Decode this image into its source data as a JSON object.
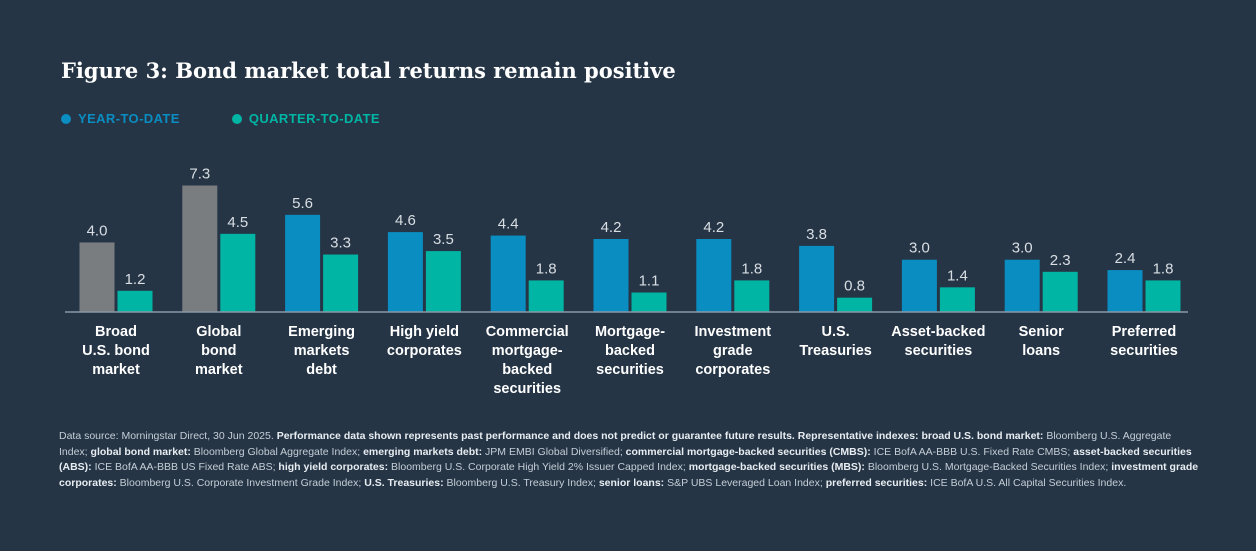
{
  "title": "Figure 3: Bond market total returns remain positive",
  "legend": {
    "ytd": "YEAR-TO-DATE",
    "qtd": "QUARTER-TO-DATE"
  },
  "colors": {
    "ytd": "#0a8dc1",
    "qtd": "#00b5a4",
    "ytd_broad": "#7a7d80",
    "background": "#253546",
    "axis": "#8a98a5"
  },
  "chart_data": {
    "type": "bar",
    "categories": [
      [
        "Broad",
        "U.S. bond",
        "market"
      ],
      [
        "Global",
        "bond",
        "market"
      ],
      [
        "Emerging",
        "markets",
        "debt"
      ],
      [
        "High yield",
        "corporates"
      ],
      [
        "Commercial",
        "mortgage-",
        "backed",
        "securities"
      ],
      [
        "Mortgage-",
        "backed",
        "securities"
      ],
      [
        "Investment",
        "grade",
        "corporates"
      ],
      [
        "U.S.",
        "Treasuries"
      ],
      [
        "Asset-backed",
        "securities"
      ],
      [
        "Senior",
        "loans"
      ],
      [
        "Preferred",
        "securities"
      ]
    ],
    "series": [
      {
        "name": "YEAR-TO-DATE",
        "values": [
          4.0,
          7.3,
          5.6,
          4.6,
          4.4,
          4.2,
          4.2,
          3.8,
          3.0,
          3.0,
          2.4
        ]
      },
      {
        "name": "QUARTER-TO-DATE",
        "values": [
          1.2,
          4.5,
          3.3,
          3.5,
          1.8,
          1.1,
          1.8,
          0.8,
          1.4,
          2.3,
          1.8
        ]
      }
    ],
    "highlight_gray_categories": [
      0,
      1
    ],
    "ylim": [
      0,
      7.3
    ]
  },
  "footnote": [
    {
      "t": "Data source: Morningstar Direct, 30 Jun 2025. ",
      "b": false
    },
    {
      "t": "Performance data shown represents past performance and does not predict or guarantee future results. Representative indexes: broad U.S. bond market:",
      "b": true
    },
    {
      "t": " Bloomberg U.S. Aggregate Index; ",
      "b": false
    },
    {
      "t": "global bond market:",
      "b": true
    },
    {
      "t": " Bloomberg Global Aggregate Index; ",
      "b": false
    },
    {
      "t": "emerging markets debt:",
      "b": true
    },
    {
      "t": " JPM EMBI Global Diversified; ",
      "b": false
    },
    {
      "t": "commercial mortgage-backed securities (CMBS):",
      "b": true
    },
    {
      "t": " ICE BofA AA-BBB U.S. Fixed Rate CMBS; ",
      "b": false
    },
    {
      "t": "asset-backed securities (ABS):",
      "b": true
    },
    {
      "t": " ICE BofA AA-BBB US Fixed Rate ABS; ",
      "b": false
    },
    {
      "t": "high yield corporates:",
      "b": true
    },
    {
      "t": " Bloomberg U.S. Corporate High Yield 2% Issuer Capped Index; ",
      "b": false
    },
    {
      "t": "mortgage-backed securities (MBS):",
      "b": true
    },
    {
      "t": " Bloomberg U.S. Mortgage-Backed Securities Index; ",
      "b": false
    },
    {
      "t": "investment grade corporates:",
      "b": true
    },
    {
      "t": " Bloomberg U.S. Corporate Investment Grade Index; ",
      "b": false
    },
    {
      "t": "U.S. Treasuries:",
      "b": true
    },
    {
      "t": " Bloomberg U.S. Treasury Index; ",
      "b": false
    },
    {
      "t": "senior loans:",
      "b": true
    },
    {
      "t": " S&P UBS Leveraged Loan Index; ",
      "b": false
    },
    {
      "t": "preferred securities:",
      "b": true
    },
    {
      "t": " ICE BofA U.S. All Capital Securities Index.",
      "b": false
    }
  ]
}
